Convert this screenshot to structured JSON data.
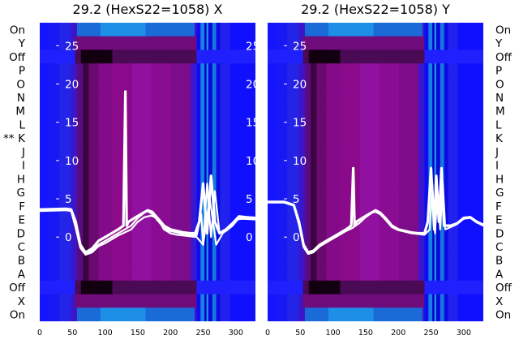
{
  "chart_data": [
    {
      "type": "heatmap",
      "title": "29.2 (HexS22=1058) X",
      "xlim": [
        0,
        330
      ],
      "ylim": [
        -11,
        28
      ],
      "xticks": [
        0,
        50,
        100,
        150,
        200,
        250,
        300
      ],
      "yticks": [
        0,
        5,
        10,
        15,
        20,
        25
      ],
      "right_ytick_labels": [
        "0",
        "5",
        "10",
        "15",
        "20",
        "25"
      ],
      "row_labels": [
        "On",
        "Y",
        "Off",
        "P",
        "O",
        "N",
        "M",
        "L",
        "K",
        "J",
        "I",
        "H",
        "G",
        "F",
        "E",
        "D",
        "C",
        "B",
        "A",
        "Off",
        "X",
        "On"
      ],
      "row_markers": [
        {
          "row": "K",
          "text": "**"
        }
      ],
      "heatmap_colorscale": [
        "#000000",
        "#7a007a",
        "#8b008b",
        "#0000ee",
        "#1e8fe6"
      ],
      "line_color": "#ffffff",
      "series": [
        {
          "x": [
            0,
            40,
            48,
            55,
            62,
            70,
            80,
            90,
            100,
            110,
            120,
            128,
            131,
            133,
            136,
            145,
            155,
            165,
            172,
            180,
            190,
            200,
            210,
            220,
            230,
            238,
            244,
            250,
            256,
            262,
            268,
            275,
            285,
            295,
            305,
            315,
            330
          ],
          "y": [
            3.6,
            3.7,
            3.6,
            2,
            -1,
            -2,
            -1.5,
            -0.5,
            0,
            0.5,
            1,
            1.5,
            19,
            1.5,
            2,
            2.5,
            3,
            3.5,
            3.3,
            2.5,
            1.5,
            1,
            0.8,
            0.6,
            0.5,
            0.5,
            2,
            7,
            0.5,
            8,
            2,
            0.5,
            1,
            1.8,
            2.7,
            2.6,
            2.5
          ]
        },
        {
          "x": [
            0,
            40,
            48,
            55,
            62,
            70,
            80,
            90,
            100,
            110,
            120,
            130,
            140,
            150,
            160,
            165,
            172,
            180,
            190,
            200,
            210,
            220,
            230,
            240,
            247,
            250,
            256,
            262,
            268,
            275,
            285,
            295,
            305,
            315,
            330
          ],
          "y": [
            3.5,
            3.6,
            3.5,
            1.5,
            -1.2,
            -2.2,
            -1.8,
            -1,
            -0.5,
            0,
            0.5,
            1,
            1.5,
            2.5,
            3.2,
            3.4,
            3,
            2.2,
            1.2,
            0.8,
            0.6,
            0.4,
            0.3,
            0.2,
            3,
            -1,
            7,
            0,
            6,
            0.5,
            0.8,
            1.5,
            2.5,
            2.5,
            2.4
          ]
        },
        {
          "x": [
            0,
            40,
            48,
            55,
            62,
            70,
            80,
            90,
            100,
            110,
            120,
            130,
            140,
            150,
            160,
            170,
            180,
            190,
            200,
            210,
            220,
            230,
            240,
            250,
            260,
            270,
            280,
            290,
            300,
            310,
            330
          ],
          "y": [
            3.4,
            3.5,
            3.4,
            1.2,
            -1.4,
            -2.3,
            -2,
            -1.2,
            -0.8,
            -0.3,
            0.2,
            0.6,
            1,
            2,
            2.6,
            2.8,
            2.5,
            1,
            0.5,
            0.3,
            0.2,
            0.1,
            0,
            -1,
            5,
            -1,
            0.5,
            1.2,
            2.3,
            2.4,
            2.3
          ]
        }
      ]
    },
    {
      "type": "heatmap",
      "title": "29.2 (HexS22=1058) Y",
      "xlim": [
        0,
        330
      ],
      "ylim": [
        -11,
        28
      ],
      "xticks": [
        0,
        50,
        100,
        150,
        200,
        250,
        300
      ],
      "yticks": [
        0,
        5,
        10,
        15,
        20,
        25
      ],
      "row_labels": [
        "On",
        "Y",
        "Off",
        "P",
        "O",
        "N",
        "M",
        "L",
        "K",
        "J",
        "I",
        "H",
        "G",
        "F",
        "E",
        "D",
        "C",
        "B",
        "A",
        "Off",
        "X",
        "On"
      ],
      "heatmap_colorscale": [
        "#000000",
        "#7a007a",
        "#8b008b",
        "#0000ee",
        "#1e8fe6"
      ],
      "line_color": "#ffffff",
      "series": [
        {
          "x": [
            0,
            25,
            40,
            48,
            55,
            62,
            70,
            80,
            90,
            100,
            110,
            120,
            128,
            131,
            133,
            136,
            145,
            155,
            165,
            172,
            180,
            190,
            200,
            210,
            220,
            230,
            240,
            245,
            250,
            255,
            258,
            262,
            266,
            270,
            280,
            290,
            300,
            310,
            320,
            330
          ],
          "y": [
            4.6,
            4.6,
            4.2,
            2,
            -1,
            -2,
            -1.8,
            -1,
            -0.5,
            0,
            0.5,
            1,
            1.5,
            9,
            1.5,
            2,
            2.5,
            3,
            3.5,
            3.2,
            2.5,
            1.5,
            1,
            0.8,
            0.6,
            0.5,
            0.5,
            2,
            9,
            1,
            8,
            2,
            9,
            1.5,
            1.5,
            1.8,
            2.5,
            2.6,
            2,
            1.6
          ]
        },
        {
          "x": [
            0,
            25,
            40,
            48,
            55,
            62,
            70,
            80,
            90,
            100,
            110,
            120,
            130,
            140,
            150,
            160,
            165,
            172,
            180,
            190,
            200,
            210,
            220,
            230,
            240,
            248,
            252,
            256,
            260,
            264,
            268,
            272,
            280,
            290,
            300,
            310,
            320,
            330
          ],
          "y": [
            4.5,
            4.5,
            4.1,
            1.6,
            -1.3,
            -2.2,
            -2,
            -1.2,
            -0.7,
            -0.2,
            0.3,
            0.8,
            1.2,
            1.8,
            2.6,
            3.2,
            3.3,
            3,
            2.3,
            1.3,
            0.9,
            0.7,
            0.5,
            0.4,
            0.3,
            1,
            7,
            0.5,
            6,
            1,
            7,
            1,
            1.3,
            1.7,
            2.4,
            2.5,
            1.9,
            1.5
          ]
        }
      ]
    }
  ]
}
